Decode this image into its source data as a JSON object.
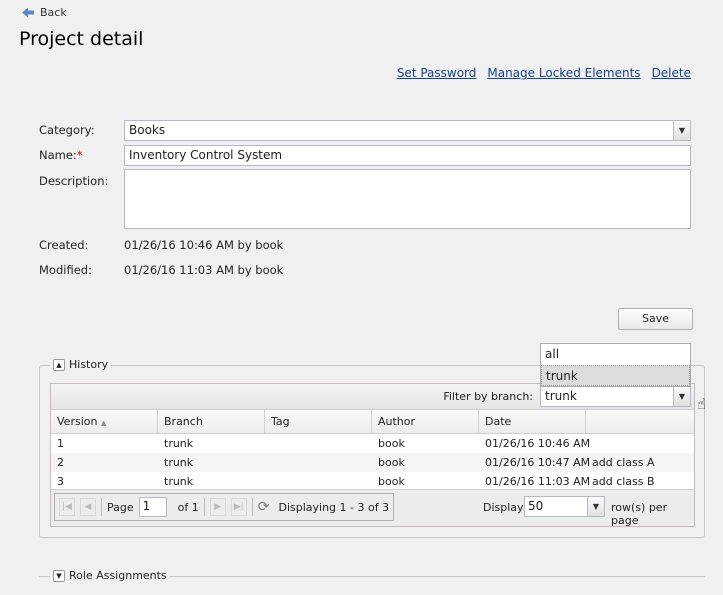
{
  "back_label": "Back",
  "title": "Project detail",
  "links": [
    "Set Password",
    "Manage Locked Elements",
    "Delete"
  ],
  "form": {
    "category_label": "Category:",
    "category_value": "Books",
    "name_label": "Name:",
    "required_mark": "*",
    "name_value": "Inventory Control System",
    "description_label": "Description:",
    "description_value": "",
    "created_label": "Created:",
    "created_value": "01/26/16 10:46 AM by book",
    "modified_label": "Modified:",
    "modified_value": "01/26/16 11:03 AM by book",
    "save_label": "Save"
  },
  "history": {
    "legend": "History",
    "filter_label": "Filter by branch:",
    "filter_value": "trunk",
    "filter_options": [
      "all",
      "trunk"
    ],
    "columns": [
      "Version",
      "Branch",
      "Tag",
      "Author",
      "Date"
    ],
    "rows": [
      [
        "1",
        "trunk",
        "",
        "book",
        "01/26/16 10:46 AM",
        ""
      ],
      [
        "2",
        "trunk",
        "",
        "book",
        "01/26/16 10:47 AM",
        "add class A"
      ],
      [
        "3",
        "trunk",
        "",
        "book",
        "01/26/16 11:03 AM",
        "add class B"
      ]
    ],
    "page_label": "Page",
    "page_value": "1",
    "of_label": "of 1",
    "displaying": "Displaying 1 - 3 of 3",
    "display_label": "Display",
    "display_value": "50",
    "per_page_label": "row(s) per page"
  },
  "roles_legend": "Role Assignments"
}
